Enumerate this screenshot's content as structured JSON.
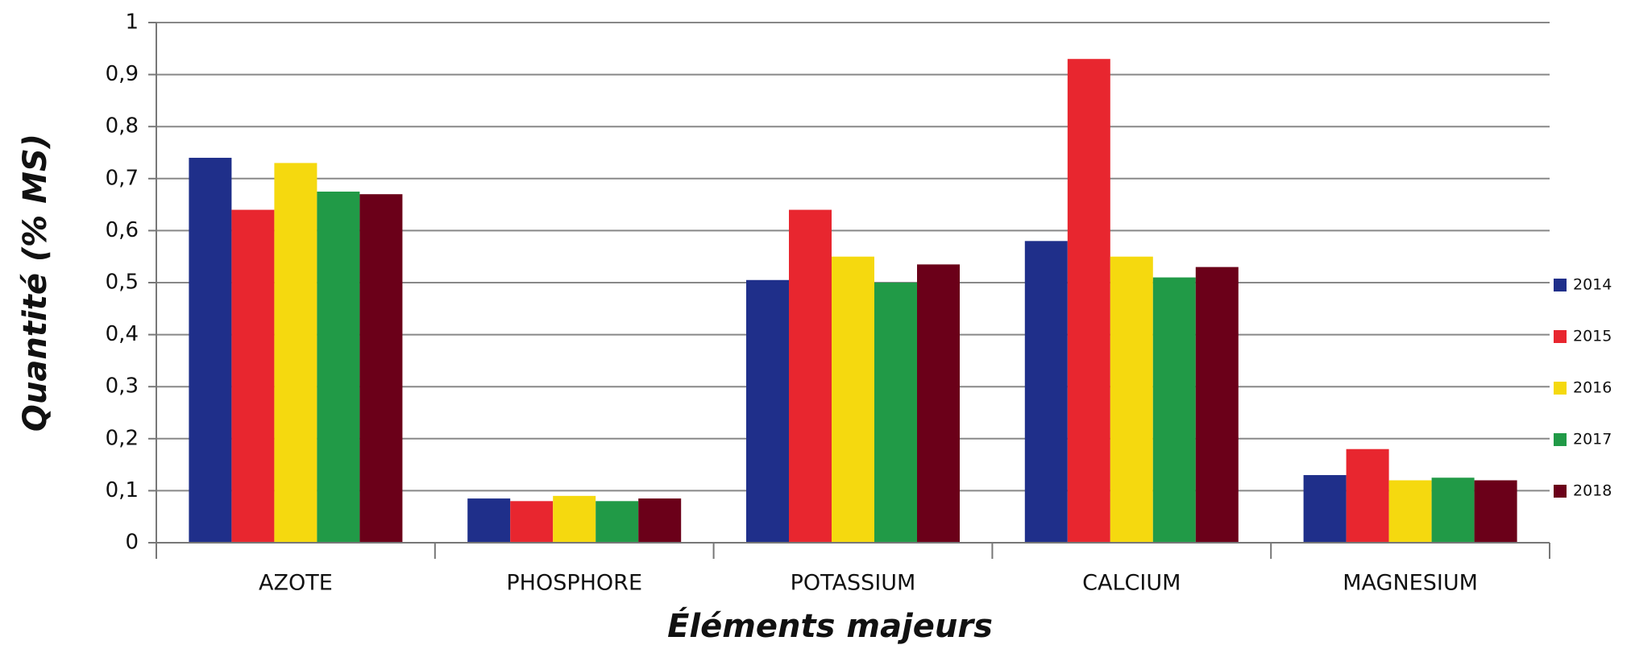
{
  "chart_data": {
    "type": "bar",
    "x_label": "Éléments majeurs",
    "y_label": "Quantité (% MS)",
    "categories": [
      "AZOTE",
      "PHOSPHORE",
      "POTASSIUM",
      "CALCIUM",
      "MAGNESIUM"
    ],
    "series": [
      {
        "name": "2014",
        "color": "#1f2f8a",
        "values": [
          0.74,
          0.085,
          0.505,
          0.58,
          0.13
        ]
      },
      {
        "name": "2015",
        "color": "#e8262f",
        "values": [
          0.64,
          0.08,
          0.64,
          0.93,
          0.18
        ]
      },
      {
        "name": "2016",
        "color": "#f5d90f",
        "values": [
          0.73,
          0.09,
          0.55,
          0.55,
          0.12
        ]
      },
      {
        "name": "2017",
        "color": "#219a47",
        "values": [
          0.675,
          0.08,
          0.5,
          0.51,
          0.125
        ]
      },
      {
        "name": "2018",
        "color": "#6b0019",
        "values": [
          0.67,
          0.085,
          0.535,
          0.53,
          0.12
        ]
      }
    ],
    "ylim": [
      0,
      1
    ],
    "yticks": [
      0,
      {
        "value": 0.1,
        "label": "0,1"
      },
      {
        "value": 0.2,
        "label": "0,2"
      },
      {
        "value": 0.3,
        "label": "0,3"
      },
      {
        "value": 0.4,
        "label": "0,4"
      },
      {
        "value": 0.5,
        "label": "0,5"
      },
      {
        "value": 0.6,
        "label": "0,6"
      },
      {
        "value": 0.7,
        "label": "0,7"
      },
      {
        "value": 0.8,
        "label": "0,8"
      },
      {
        "value": 0.9,
        "label": "0,9"
      },
      1
    ],
    "grid": true,
    "legend": "right"
  }
}
